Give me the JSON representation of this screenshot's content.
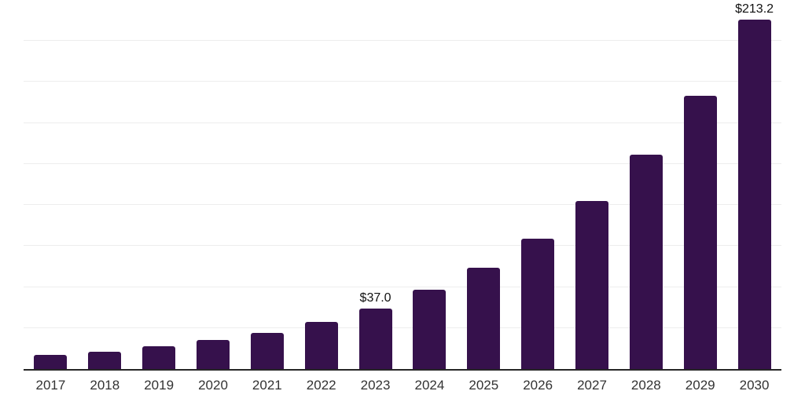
{
  "chart_data": {
    "type": "bar",
    "title": "",
    "xlabel": "",
    "ylabel": "",
    "categories": [
      "2017",
      "2018",
      "2019",
      "2020",
      "2021",
      "2022",
      "2023",
      "2024",
      "2025",
      "2026",
      "2027",
      "2028",
      "2029",
      "2030"
    ],
    "values": [
      8.6,
      10.6,
      13.8,
      17.7,
      22.0,
      28.5,
      37.0,
      48.2,
      62.0,
      79.7,
      102.6,
      130.8,
      166.6,
      213.2
    ],
    "point_labels": [
      {
        "category": "2023",
        "text": "$37.0"
      },
      {
        "category": "2030",
        "text": "$213.2"
      }
    ],
    "ylim": [
      0,
      225
    ],
    "gridlines": {
      "visible": true,
      "step": 25,
      "values": [
        25,
        50,
        75,
        100,
        125,
        150,
        175,
        200,
        225
      ]
    },
    "legend": "none",
    "y_tick_labels_visible": false,
    "colors": {
      "bar": "#36114c",
      "gridline": "#ededed",
      "axis_line": "#262626",
      "tick_label": "#333333",
      "value_label": "#111111",
      "background": "#ffffff"
    }
  }
}
